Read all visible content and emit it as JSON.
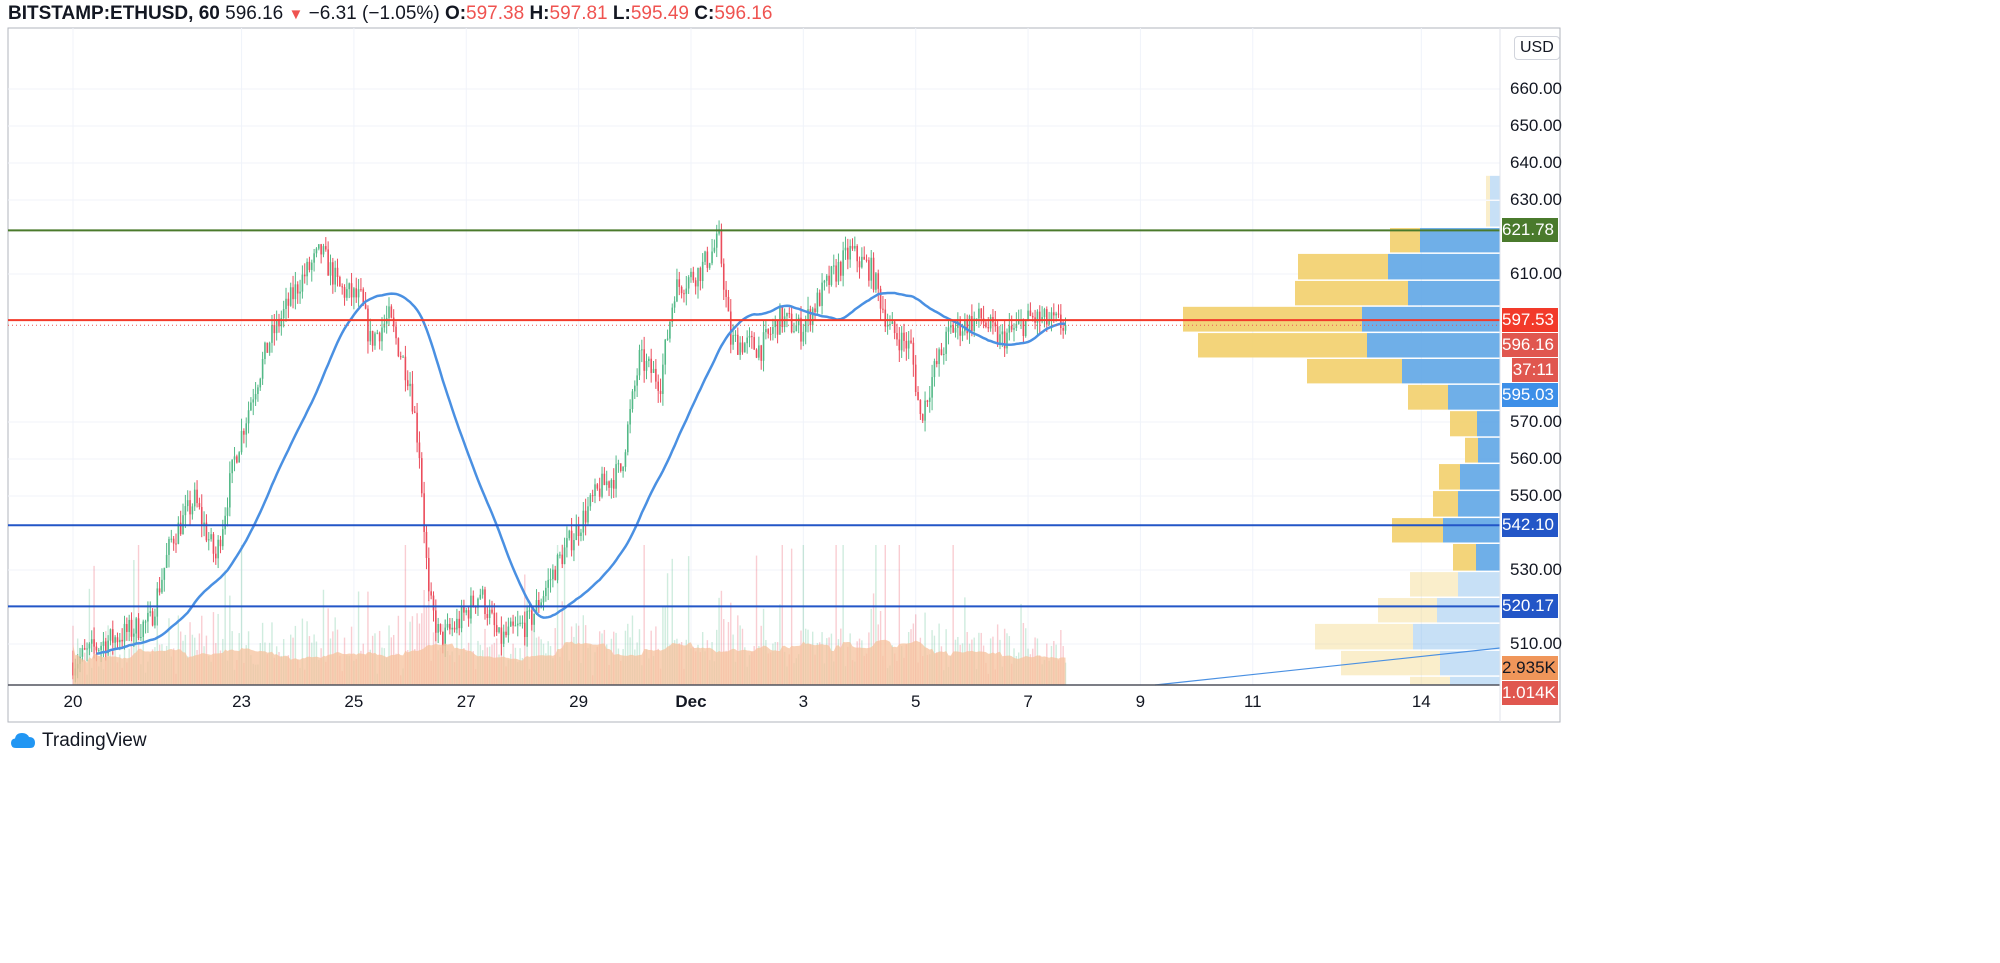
{
  "header": {
    "symbol": "BITSTAMP:ETHUSD, 60",
    "last": "596.16",
    "change": "−6.31 (−1.05%)",
    "o_label": "O:",
    "o": "597.38",
    "h_label": "H:",
    "h": "597.81",
    "l_label": "L:",
    "l": "595.49",
    "c_label": "C:",
    "c": "596.16",
    "direction_icon": "triangle-down"
  },
  "currency_button": "USD",
  "brand": "TradingView",
  "colors": {
    "up": "#53b987",
    "down": "#eb4d5c",
    "ma": "#4a90e2",
    "resistance": "#4a7a2c",
    "current": "#f23a2a",
    "support": "#2356c7",
    "profile_up": "#f2cf6b",
    "profile_down": "#5fa6e6",
    "volume_ma": "#f5c29c"
  },
  "chart_data": {
    "type": "candlestick",
    "interval": "60",
    "ylim": [
      497,
      672
    ],
    "y_ticks": [
      "660.00",
      "650.00",
      "640.00",
      "630.00",
      "610.00",
      "570.00",
      "560.00",
      "550.00",
      "530.00",
      "510.00"
    ],
    "y_tick_values": [
      660,
      650,
      640,
      630,
      610,
      570,
      560,
      550,
      530,
      510
    ],
    "x_ticks": [
      {
        "label": "20",
        "date": "2020-11-20"
      },
      {
        "label": "23",
        "date": "2020-11-23"
      },
      {
        "label": "25",
        "date": "2020-11-25"
      },
      {
        "label": "27",
        "date": "2020-11-27"
      },
      {
        "label": "29",
        "date": "2020-11-29"
      },
      {
        "label": "Dec",
        "date": "2020-12-01"
      },
      {
        "label": "3",
        "date": "2020-12-03"
      },
      {
        "label": "5",
        "date": "2020-12-05"
      },
      {
        "label": "7",
        "date": "2020-12-07"
      },
      {
        "label": "9",
        "date": "2020-12-09"
      },
      {
        "label": "11",
        "date": "2020-12-11"
      },
      {
        "label": "14",
        "date": "2020-12-14"
      }
    ],
    "grid": true,
    "close_path": [
      [
        "2020-11-20T00:00",
        505
      ],
      [
        "2020-11-20T12:00",
        510
      ],
      [
        "2020-11-21T09:00",
        516
      ],
      [
        "2020-11-21T18:00",
        538
      ],
      [
        "2020-11-22T04:00",
        549
      ],
      [
        "2020-11-22T13:00",
        533
      ],
      [
        "2020-11-22T21:00",
        560
      ],
      [
        "2020-11-23T04:00",
        576
      ],
      [
        "2020-11-23T12:00",
        592
      ],
      [
        "2020-11-24T01:00",
        608
      ],
      [
        "2020-11-24T10:00",
        616
      ],
      [
        "2020-11-24T18:00",
        606
      ],
      [
        "2020-11-25T03:00",
        603
      ],
      [
        "2020-11-25T07:00",
        592
      ],
      [
        "2020-11-25T15:00",
        598
      ],
      [
        "2020-11-26T00:00",
        581
      ],
      [
        "2020-11-26T04:00",
        562
      ],
      [
        "2020-11-26T08:00",
        522
      ],
      [
        "2020-11-26T13:00",
        511
      ],
      [
        "2020-11-26T21:00",
        516
      ],
      [
        "2020-11-27T06:00",
        524
      ],
      [
        "2020-11-27T14:00",
        511
      ],
      [
        "2020-11-28T03:00",
        516
      ],
      [
        "2020-11-28T16:00",
        533
      ],
      [
        "2020-11-29T01:00",
        543
      ],
      [
        "2020-11-29T09:00",
        552
      ],
      [
        "2020-11-29T18:00",
        557
      ],
      [
        "2020-11-30T02:00",
        587
      ],
      [
        "2020-11-30T11:00",
        581
      ],
      [
        "2020-11-30T17:00",
        606
      ],
      [
        "2020-12-01T04:00",
        611
      ],
      [
        "2020-12-01T12:00",
        619
      ],
      [
        "2020-12-01T17:00",
        592
      ],
      [
        "2020-12-02T06:00",
        590
      ],
      [
        "2020-12-02T14:00",
        598
      ],
      [
        "2020-12-02T23:00",
        595
      ],
      [
        "2020-12-03T11:00",
        608
      ],
      [
        "2020-12-03T20:00",
        616
      ],
      [
        "2020-12-04T05:00",
        611
      ],
      [
        "2020-12-04T13:00",
        595
      ],
      [
        "2020-12-04T22:00",
        590
      ],
      [
        "2020-12-05T02:00",
        571
      ],
      [
        "2020-12-05T08:00",
        584
      ],
      [
        "2020-12-05T15:00",
        595
      ],
      [
        "2020-12-06T04:00",
        598
      ],
      [
        "2020-12-06T12:00",
        592
      ],
      [
        "2020-12-07T01:00",
        598
      ],
      [
        "2020-12-07T16:00",
        596.16
      ]
    ],
    "horizontal_lines": [
      {
        "price": 621.78,
        "label": "621.78",
        "role": "resistance"
      },
      {
        "price": 597.53,
        "label": "597.53",
        "role": "current"
      },
      {
        "price": 542.1,
        "label": "542.10",
        "role": "support"
      },
      {
        "price": 520.17,
        "label": "520.17",
        "role": "support"
      }
    ],
    "price_labels": {
      "last": "596.16",
      "countdown": "37:11",
      "ma": "595.03",
      "volume_ma": "2.935K",
      "volume": "1.014K"
    },
    "volume_profile": [
      {
        "high": 636.8,
        "up": 4,
        "down": 10,
        "faded": true
      },
      {
        "high": 630.0,
        "up": 4,
        "down": 10,
        "faded": true
      },
      {
        "high": 622.7,
        "up": 30,
        "down": 80,
        "faded": false
      },
      {
        "high": 615.7,
        "up": 90,
        "down": 112,
        "faded": false
      },
      {
        "high": 608.4,
        "up": 113,
        "down": 92,
        "faded": false
      },
      {
        "high": 601.4,
        "up": 179,
        "down": 138,
        "faded": false
      },
      {
        "high": 594.3,
        "up": 169,
        "down": 133,
        "faded": false
      },
      {
        "high": 587.3,
        "up": 95,
        "down": 98,
        "faded": false
      },
      {
        "high": 580.3,
        "up": 40,
        "down": 52,
        "faded": false
      },
      {
        "high": 573.2,
        "up": 27,
        "down": 23,
        "faded": false
      },
      {
        "high": 566.0,
        "up": 13,
        "down": 22,
        "faded": false
      },
      {
        "high": 558.9,
        "up": 21,
        "down": 40,
        "faded": false
      },
      {
        "high": 551.6,
        "up": 25,
        "down": 42,
        "faded": false
      },
      {
        "high": 544.3,
        "up": 51,
        "down": 57,
        "faded": false
      },
      {
        "high": 537.3,
        "up": 23,
        "down": 24,
        "faded": false
      },
      {
        "high": 529.7,
        "up": 48,
        "down": 42,
        "faded": true
      },
      {
        "high": 522.7,
        "up": 59,
        "down": 63,
        "faded": true
      },
      {
        "high": 515.7,
        "up": 98,
        "down": 87,
        "faded": true
      },
      {
        "high": 508.4,
        "up": 99,
        "down": 60,
        "faded": true
      },
      {
        "high": 501.4,
        "up": 40,
        "down": 50,
        "faded": true
      }
    ],
    "volume_profile_bottom": 498.9
  }
}
